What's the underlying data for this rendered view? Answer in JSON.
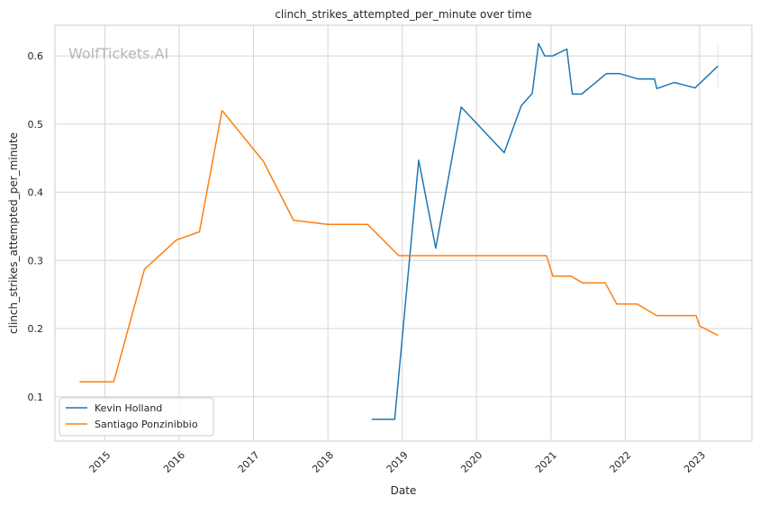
{
  "chart_data": {
    "type": "line",
    "title": "clinch_strikes_attempted_per_minute over time",
    "xlabel": "Date",
    "ylabel": "clinch_strikes_attempted_per_minute",
    "watermark": "WolfTickets.AI",
    "xlim": [
      "2014-05-01",
      "2023-09-15"
    ],
    "ylim": [
      0.035,
      0.645
    ],
    "x_ticks": [
      "2015-01-01",
      "2016-01-01",
      "2017-01-01",
      "2018-01-01",
      "2019-01-01",
      "2020-01-01",
      "2021-01-01",
      "2022-01-01",
      "2023-01-01"
    ],
    "x_tick_labels": [
      "2015",
      "2016",
      "2017",
      "2018",
      "2019",
      "2020",
      "2021",
      "2022",
      "2023"
    ],
    "y_ticks": [
      0.1,
      0.2,
      0.3,
      0.4,
      0.5,
      0.6
    ],
    "y_tick_labels": [
      "0.1",
      "0.2",
      "0.3",
      "0.4",
      "0.5",
      "0.6"
    ],
    "grid": true,
    "legend_position": "lower-left",
    "series": [
      {
        "name": "Kevin Holland",
        "color": "#1f77b4",
        "x": [
          "2018-08-04",
          "2018-11-25",
          "2019-03-23",
          "2019-06-15",
          "2019-10-18",
          "2020-05-16",
          "2020-08-08",
          "2020-10-01",
          "2020-11-01",
          "2020-12-01",
          "2021-01-10",
          "2021-03-20",
          "2021-04-16",
          "2021-06-01",
          "2021-09-30",
          "2021-12-05",
          "2022-03-05",
          "2022-05-25",
          "2022-06-05",
          "2022-08-30",
          "2022-12-10",
          "2023-04-01"
        ],
        "y": [
          0.067,
          0.067,
          0.447,
          0.318,
          0.525,
          0.458,
          0.527,
          0.545,
          0.618,
          0.6,
          0.6,
          0.61,
          0.544,
          0.544,
          0.574,
          0.574,
          0.566,
          0.566,
          0.552,
          0.561,
          0.553,
          0.585
        ]
      },
      {
        "name": "Santiago Ponzinibbio",
        "color": "#ff7f0e",
        "x": [
          "2014-08-30",
          "2015-02-14",
          "2015-07-15",
          "2015-12-19",
          "2016-04-10",
          "2016-07-30",
          "2017-02-19",
          "2017-07-16",
          "2017-12-30",
          "2018-07-15",
          "2018-12-15",
          "2019-06-15",
          "2020-06-15",
          "2020-12-10",
          "2021-01-10",
          "2021-04-10",
          "2021-06-05",
          "2021-09-25",
          "2021-11-20",
          "2022-03-01",
          "2022-06-05",
          "2022-12-15",
          "2023-01-01",
          "2023-04-01"
        ],
        "y": [
          0.122,
          0.122,
          0.287,
          0.33,
          0.342,
          0.52,
          0.445,
          0.359,
          0.353,
          0.353,
          0.307,
          0.307,
          0.307,
          0.307,
          0.277,
          0.277,
          0.267,
          0.267,
          0.236,
          0.236,
          0.219,
          0.219,
          0.204,
          0.19
        ]
      }
    ]
  }
}
